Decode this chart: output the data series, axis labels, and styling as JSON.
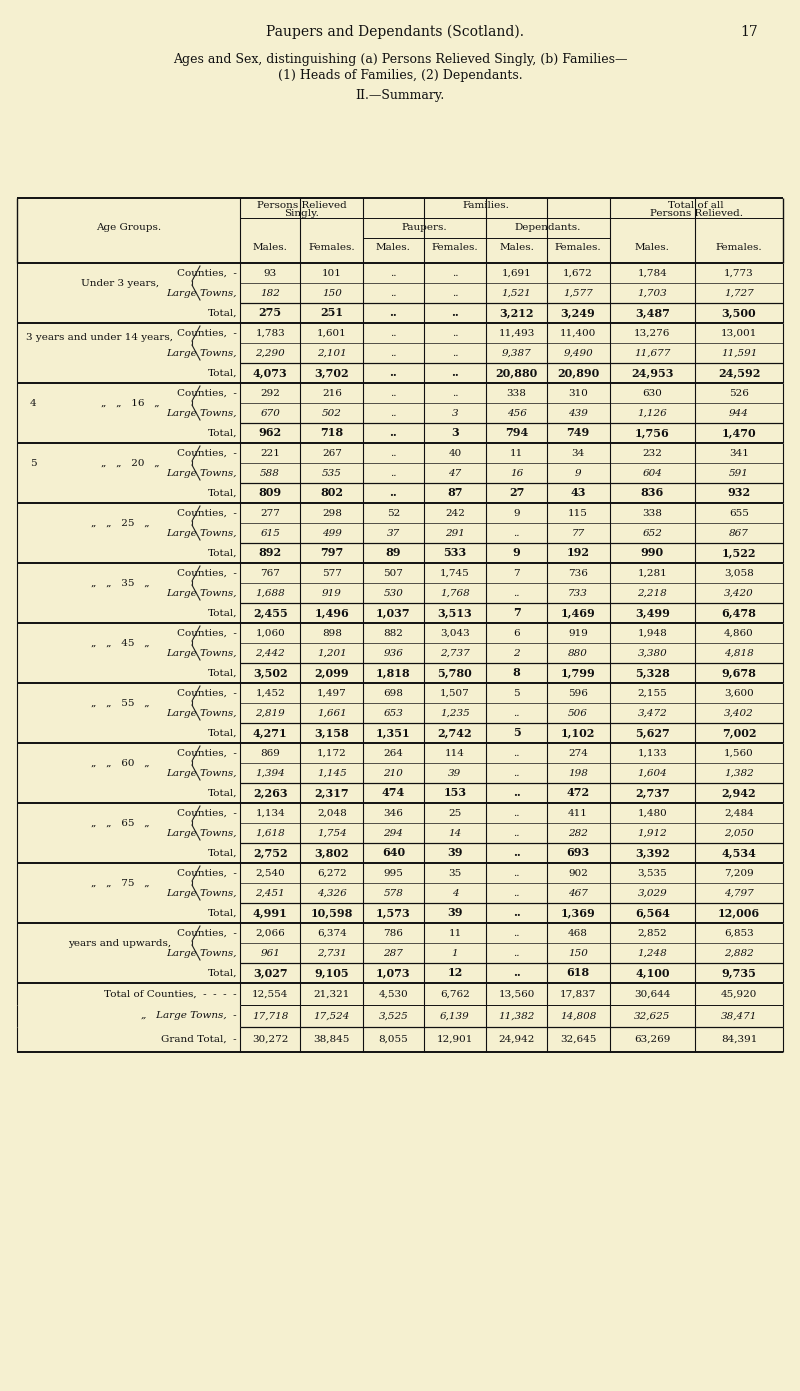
{
  "bg_color": "#f5f0d0",
  "title": "Paupers and Dependants (Scotland).",
  "page_num": "17",
  "subtitle1": "Ages and Sex, distinguishing (a) Persons Relieved Singly, (b) Families—",
  "subtitle2": "(1) Heads of Families, (2) Dependants.",
  "subtitle3": "II.—Summary.",
  "rows": [
    {
      "age_label": [
        "Under 3 years,",
        "",
        ""
      ],
      "counties": [
        "93",
        "101",
        "..",
        "..",
        "1,691",
        "1,672",
        "1,784",
        "1,773"
      ],
      "towns": [
        "182",
        "150",
        "..",
        "..",
        "1,521",
        "1,577",
        "1,703",
        "1,727"
      ],
      "total": [
        "275",
        "251",
        "..",
        "..",
        "3,212",
        "3,249",
        "3,487",
        "3,500"
      ]
    },
    {
      "age_label": [
        "3 years and under 14 years,",
        "",
        ""
      ],
      "counties": [
        "1,783",
        "1,601",
        "..",
        "..",
        "11,493",
        "11,400",
        "13,276",
        "13,001"
      ],
      "towns": [
        "2,290",
        "2,101",
        "..",
        "..",
        "9,387",
        "9,490",
        "11,677",
        "11,591"
      ],
      "total": [
        "4,073",
        "3,702",
        "..",
        "..",
        "20,880",
        "20,890",
        "24,953",
        "24,592"
      ]
    },
    {
      "age_label": [
        "4  „  „  16  „",
        "",
        ""
      ],
      "counties": [
        "292",
        "216",
        "..",
        "..",
        "338",
        "310",
        "630",
        "526"
      ],
      "towns": [
        "670",
        "502",
        "..",
        "3",
        "456",
        "439",
        "1,126",
        "944"
      ],
      "total": [
        "962",
        "718",
        "..",
        "3",
        "794",
        "749",
        "1,756",
        "1,470"
      ]
    },
    {
      "age_label": [
        "5  „  „  20  „",
        "",
        ""
      ],
      "counties": [
        "221",
        "267",
        "..",
        "40",
        "11",
        "34",
        "232",
        "341"
      ],
      "towns": [
        "588",
        "535",
        "..",
        "47",
        "16",
        "9",
        "604",
        "591"
      ],
      "total": [
        "809",
        "802",
        "..",
        "87",
        "27",
        "43",
        "836",
        "932"
      ]
    },
    {
      "age_label": [
        "„  „  25  „",
        "",
        ""
      ],
      "counties": [
        "277",
        "298",
        "52",
        "242",
        "9",
        "115",
        "338",
        "655"
      ],
      "towns": [
        "615",
        "499",
        "37",
        "291",
        "..",
        "77",
        "652",
        "867"
      ],
      "total": [
        "892",
        "797",
        "89",
        "533",
        "9",
        "192",
        "990",
        "1,522"
      ]
    },
    {
      "age_label": [
        "„  „  35  „",
        "",
        ""
      ],
      "counties": [
        "767",
        "577",
        "507",
        "1,745",
        "7",
        "736",
        "1,281",
        "3,058"
      ],
      "towns": [
        "1,688",
        "919",
        "530",
        "1,768",
        "..",
        "733",
        "2,218",
        "3,420"
      ],
      "total": [
        "2,455",
        "1,496",
        "1,037",
        "3,513",
        "7",
        "1,469",
        "3,499",
        "6,478"
      ]
    },
    {
      "age_label": [
        "„  „  45  „",
        "",
        ""
      ],
      "counties": [
        "1,060",
        "898",
        "882",
        "3,043",
        "6",
        "919",
        "1,948",
        "4,860"
      ],
      "towns": [
        "2,442",
        "1,201",
        "936",
        "2,737",
        "2",
        "880",
        "3,380",
        "4,818"
      ],
      "total": [
        "3,502",
        "2,099",
        "1,818",
        "5,780",
        "8",
        "1,799",
        "5,328",
        "9,678"
      ]
    },
    {
      "age_label": [
        "„  „  55  „",
        "",
        ""
      ],
      "counties": [
        "1,452",
        "1,497",
        "698",
        "1,507",
        "5",
        "596",
        "2,155",
        "3,600"
      ],
      "towns": [
        "2,819",
        "1,661",
        "653",
        "1,235",
        "..",
        "506",
        "3,472",
        "3,402"
      ],
      "total": [
        "4,271",
        "3,158",
        "1,351",
        "2,742",
        "5",
        "1,102",
        "5,627",
        "7,002"
      ]
    },
    {
      "age_label": [
        "„  „  60  „",
        "",
        ""
      ],
      "counties": [
        "869",
        "1,172",
        "264",
        "114",
        "..",
        "274",
        "1,133",
        "1,560"
      ],
      "towns": [
        "1,394",
        "1,145",
        "210",
        "39",
        "..",
        "198",
        "1,604",
        "1,382"
      ],
      "total": [
        "2,263",
        "2,317",
        "474",
        "153",
        "..",
        "472",
        "2,737",
        "2,942"
      ]
    },
    {
      "age_label": [
        "„  „  65  „",
        "",
        ""
      ],
      "counties": [
        "1,134",
        "2,048",
        "346",
        "25",
        "..",
        "411",
        "1,480",
        "2,484"
      ],
      "towns": [
        "1,618",
        "1,754",
        "294",
        "14",
        "..",
        "282",
        "1,912",
        "2,050"
      ],
      "total": [
        "2,752",
        "3,802",
        "640",
        "39",
        "..",
        "693",
        "3,392",
        "4,534"
      ]
    },
    {
      "age_label": [
        "„  „  75  „",
        "",
        ""
      ],
      "counties": [
        "2,540",
        "6,272",
        "995",
        "35",
        "..",
        "902",
        "3,535",
        "7,209"
      ],
      "towns": [
        "2,451",
        "4,326",
        "578",
        "4",
        "..",
        "467",
        "3,029",
        "4,797"
      ],
      "total": [
        "4,991",
        "10,598",
        "1,573",
        "39",
        "..",
        "1,369",
        "6,564",
        "12,006"
      ]
    },
    {
      "age_label": [
        "years and upwards,",
        "",
        ""
      ],
      "counties": [
        "2,066",
        "6,374",
        "786",
        "11",
        "..",
        "468",
        "2,852",
        "6,853"
      ],
      "towns": [
        "961",
        "2,731",
        "287",
        "1",
        "..",
        "150",
        "1,248",
        "2,882"
      ],
      "total": [
        "3,027",
        "9,105",
        "1,073",
        "12",
        "..",
        "618",
        "4,100",
        "9,735"
      ]
    }
  ],
  "footer": [
    [
      "Total of Counties,",
      "12,554",
      "21,321",
      "4,530",
      "6,762",
      "13,560",
      "17,837",
      "30,644",
      "45,920"
    ],
    [
      "    Large Towns,",
      "17,718",
      "17,524",
      "3,525",
      "6,139",
      "11,382",
      "14,808",
      "32,625",
      "38,471"
    ],
    [
      "Grand Total,",
      "30,272",
      "38,845",
      "8,055",
      "12,901",
      "24,942",
      "32,645",
      "63,269",
      "84,391"
    ]
  ],
  "col_age_label_labels": [
    "Under 3 years,",
    "3 years and under 14 years,",
    "4 „ „ 16 „",
    "5 „ „ 20 „",
    "„ „ 25 „",
    "„ „ 35 „",
    "„ „ 45 „",
    "„ „ 55 „",
    "„ „ 60 „",
    "„ „ 65 „",
    "„ „ 75 „",
    "years and upwards,"
  ]
}
